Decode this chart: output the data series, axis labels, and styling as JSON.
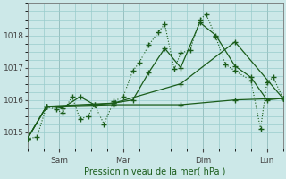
{
  "bg_color": "#cce8e8",
  "grid_color": "#99cccc",
  "line_color": "#1a5c1a",
  "xlabel": "Pression niveau de la mer( hPa )",
  "ylim": [
    1014.5,
    1019.0
  ],
  "yticks": [
    1015,
    1016,
    1017,
    1018
  ],
  "xlim": [
    0,
    8
  ],
  "day_labels": [
    "Sam",
    "Mar",
    "Dim",
    "Lun"
  ],
  "day_positions": [
    1,
    3,
    5.5,
    7.5
  ],
  "series1_x": [
    0.0,
    0.3,
    0.6,
    0.9,
    1.1,
    1.4,
    1.65,
    1.9,
    2.1,
    2.4,
    2.7,
    3.0,
    3.3,
    3.5,
    3.8,
    4.1,
    4.3,
    4.6,
    4.8,
    5.1,
    5.4,
    5.6,
    5.9,
    6.2,
    6.5,
    7.0,
    7.3,
    7.5,
    7.7,
    8.0
  ],
  "series1_y": [
    1014.8,
    1014.85,
    1015.8,
    1015.7,
    1015.6,
    1016.1,
    1015.4,
    1015.5,
    1015.85,
    1015.25,
    1015.95,
    1016.1,
    1016.9,
    1017.15,
    1017.7,
    1018.1,
    1018.35,
    1016.95,
    1017.45,
    1017.55,
    1018.5,
    1018.65,
    1017.95,
    1017.1,
    1016.9,
    1016.6,
    1015.1,
    1016.55,
    1016.7,
    1016.05
  ],
  "series2_x": [
    0.0,
    0.6,
    1.1,
    1.65,
    2.1,
    2.7,
    3.3,
    3.8,
    4.3,
    4.8,
    5.4,
    5.9,
    6.5,
    7.0,
    7.5,
    8.0
  ],
  "series2_y": [
    1014.8,
    1015.8,
    1015.75,
    1016.1,
    1015.85,
    1015.9,
    1016.0,
    1016.85,
    1017.6,
    1017.0,
    1018.4,
    1018.0,
    1017.05,
    1016.7,
    1016.0,
    1016.05
  ],
  "series3_x": [
    0.0,
    0.6,
    2.7,
    4.8,
    6.5,
    8.0
  ],
  "series3_y": [
    1014.8,
    1015.8,
    1015.85,
    1015.85,
    1016.0,
    1016.05
  ],
  "series4_x": [
    0.0,
    0.6,
    2.7,
    4.8,
    6.5,
    8.0
  ],
  "series4_y": [
    1014.8,
    1015.8,
    1015.9,
    1016.5,
    1017.8,
    1016.05
  ]
}
